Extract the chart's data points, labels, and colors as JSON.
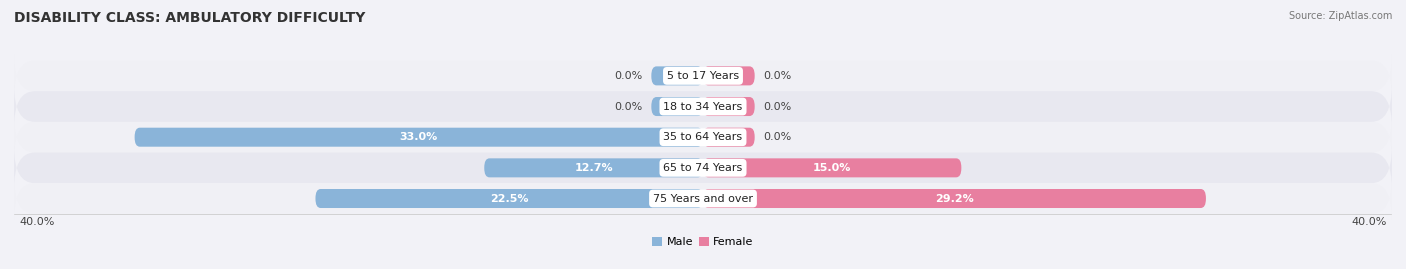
{
  "title": "DISABILITY CLASS: AMBULATORY DIFFICULTY",
  "source": "Source: ZipAtlas.com",
  "categories": [
    "5 to 17 Years",
    "18 to 34 Years",
    "35 to 64 Years",
    "65 to 74 Years",
    "75 Years and over"
  ],
  "male_values": [
    0.0,
    0.0,
    33.0,
    12.7,
    22.5
  ],
  "female_values": [
    0.0,
    0.0,
    0.0,
    15.0,
    29.2
  ],
  "max_value": 40.0,
  "stub_value": 3.0,
  "male_color": "#8ab4d9",
  "female_color": "#e87fa0",
  "male_label": "Male",
  "female_label": "Female",
  "row_color_light": "#f0f0f5",
  "row_color_dark": "#e8e8f0",
  "bg_color": "#f2f2f7",
  "axis_label_left": "40.0%",
  "axis_label_right": "40.0%",
  "title_fontsize": 10,
  "label_fontsize": 8,
  "category_fontsize": 8,
  "value_fontsize": 8,
  "source_fontsize": 7
}
